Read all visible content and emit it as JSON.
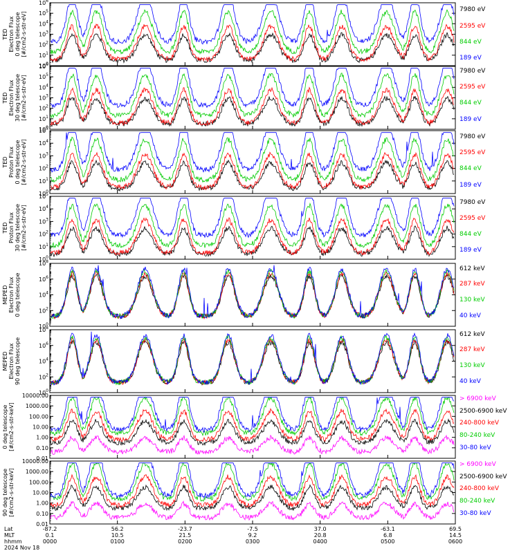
{
  "chart_data": [
    {
      "type": "line",
      "ylabel_lines": [
        "TED",
        "Electron Flux",
        "0 deg telescope",
        "[#/cm2-s-str-eV]"
      ],
      "yscale": "log",
      "ylim": [
        1,
        1000000
      ],
      "ytick_labels": [
        "10^0",
        "10^1",
        "10^2",
        "10^3",
        "10^4",
        "10^5",
        "10^6"
      ],
      "series": [
        {
          "name": "7980 eV",
          "color": "#000000"
        },
        {
          "name": "2595 eV",
          "color": "#ff0000"
        },
        {
          "name": "844 eV",
          "color": "#00cc00"
        },
        {
          "name": "189 eV",
          "color": "#0000ff"
        }
      ]
    },
    {
      "type": "line",
      "ylabel_lines": [
        "TED",
        "Electron Flux",
        "30 deg telescope",
        "[#/cm2-s-str-eV]"
      ],
      "yscale": "log",
      "ylim": [
        1,
        1000000
      ],
      "ytick_labels": [
        "10^0",
        "10^1",
        "10^2",
        "10^3",
        "10^4",
        "10^5",
        "10^6"
      ],
      "series": [
        {
          "name": "7980 eV",
          "color": "#000000"
        },
        {
          "name": "2595 eV",
          "color": "#ff0000"
        },
        {
          "name": "844 eV",
          "color": "#00cc00"
        },
        {
          "name": "189 eV",
          "color": "#0000ff"
        }
      ]
    },
    {
      "type": "line",
      "ylabel_lines": [
        "TED",
        "Proton Flux",
        "0 deg telescope",
        "[#/cm2-s-str-eV]"
      ],
      "yscale": "log",
      "ylim": [
        1,
        100000
      ],
      "ytick_labels": [
        "10^0",
        "10^1",
        "10^2",
        "10^3",
        "10^4",
        "10^5"
      ],
      "series": [
        {
          "name": "7980 eV",
          "color": "#000000"
        },
        {
          "name": "2595 eV",
          "color": "#ff0000"
        },
        {
          "name": "844 eV",
          "color": "#00cc00"
        },
        {
          "name": "189 eV",
          "color": "#0000ff"
        }
      ]
    },
    {
      "type": "line",
      "ylabel_lines": [
        "TED",
        "Proton Flux",
        "30 deg telescope",
        "[#/cm2-s-str-eV]"
      ],
      "yscale": "log",
      "ylim": [
        1,
        100000
      ],
      "ytick_labels": [
        "10^0",
        "10^1",
        "10^2",
        "10^3",
        "10^4",
        "10^5"
      ],
      "series": [
        {
          "name": "7980 eV",
          "color": "#000000"
        },
        {
          "name": "2595 eV",
          "color": "#ff0000"
        },
        {
          "name": "844 eV",
          "color": "#00cc00"
        },
        {
          "name": "189 eV",
          "color": "#0000ff"
        }
      ]
    },
    {
      "type": "line",
      "ylabel_lines": [
        "MEPED",
        "Electron Flux",
        "0 deg telescope",
        ""
      ],
      "yscale": "log",
      "ylim": [
        1,
        100000000
      ],
      "ytick_labels": [
        "10^0",
        "10^2",
        "10^4",
        "10^6",
        "10^8"
      ],
      "series": [
        {
          "name": "612 keV",
          "color": "#000000"
        },
        {
          "name": "287 keV",
          "color": "#ff0000"
        },
        {
          "name": "130 keV",
          "color": "#00cc00"
        },
        {
          "name": "40 keV",
          "color": "#0000ff"
        }
      ]
    },
    {
      "type": "line",
      "ylabel_lines": [
        "MEPED",
        "Electron Flux",
        "90 deg telescope",
        ""
      ],
      "yscale": "log",
      "ylim": [
        1,
        100000000
      ],
      "ytick_labels": [
        "10^0",
        "10^2",
        "10^4",
        "10^6",
        "10^8"
      ],
      "series": [
        {
          "name": "612 keV",
          "color": "#000000"
        },
        {
          "name": "287 keV",
          "color": "#ff0000"
        },
        {
          "name": "130 keV",
          "color": "#00cc00"
        },
        {
          "name": "40 keV",
          "color": "#0000ff"
        }
      ]
    },
    {
      "type": "line",
      "ylabel_lines": [
        "0 deg telescope",
        "[#/cm2-s-str-keV]"
      ],
      "yscale": "log",
      "ylim": [
        0.01,
        10000
      ],
      "ytick_labels": [
        "0.01",
        "0.10",
        "1.00",
        "10.00",
        "100.00",
        "1000.00",
        "10000.00"
      ],
      "series": [
        {
          "name": "> 6900 keV",
          "color": "#ff00ff"
        },
        {
          "name": "2500-6900 keV",
          "color": "#000000"
        },
        {
          "name": "240-800 keV",
          "color": "#ff0000"
        },
        {
          "name": "80-240 keV",
          "color": "#00cc00"
        },
        {
          "name": "30-80 keV",
          "color": "#0000ff"
        }
      ]
    },
    {
      "type": "line",
      "ylabel_lines": [
        "90 deg telescope",
        "[#/cm2-s-str-keV]"
      ],
      "yscale": "log",
      "ylim": [
        0.01,
        10000
      ],
      "ytick_labels": [
        "0.01",
        "0.10",
        "1.00",
        "10.00",
        "100.00",
        "1000.00",
        "10000.00"
      ],
      "series": [
        {
          "name": "> 6900 keV",
          "color": "#ff00ff"
        },
        {
          "name": "2500-6900 keV",
          "color": "#000000"
        },
        {
          "name": "240-800 keV",
          "color": "#ff0000"
        },
        {
          "name": "80-240 keV",
          "color": "#00cc00"
        },
        {
          "name": "30-80 keV",
          "color": "#0000ff"
        }
      ]
    }
  ],
  "x_axis": {
    "row_labels": [
      "Lat",
      "MLT",
      "hhmm"
    ],
    "date": "2024 Nov 18",
    "ticks": [
      {
        "lat": "-87.2",
        "mlt": "0.1",
        "hhmm": "0000"
      },
      {
        "lat": "56.2",
        "mlt": "10.5",
        "hhmm": "0100"
      },
      {
        "lat": "-23.7",
        "mlt": "21.5",
        "hhmm": "0200"
      },
      {
        "lat": "-7.5",
        "mlt": "9.2",
        "hhmm": "0300"
      },
      {
        "lat": "37.0",
        "mlt": "20.8",
        "hhmm": "0400"
      },
      {
        "lat": "-63.1",
        "mlt": "6.8",
        "hhmm": "0500"
      },
      {
        "lat": "69.5",
        "mlt": "14.5",
        "hhmm": "0600"
      }
    ]
  },
  "colors": {
    "black": "#000000",
    "red": "#ff0000",
    "green": "#00cc00",
    "blue": "#0000ff",
    "magenta": "#ff00ff"
  }
}
